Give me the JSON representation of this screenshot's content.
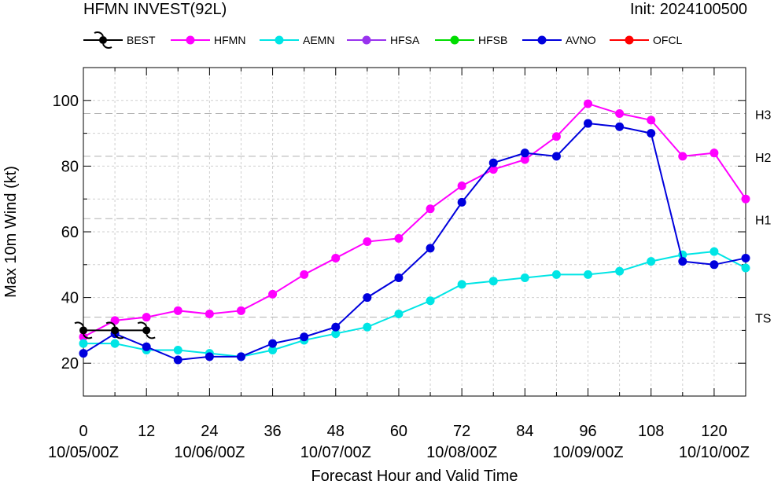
{
  "chart_data": {
    "type": "line",
    "title": "HFMN INVEST(92L)",
    "init_label": "Init: 2024100500",
    "xlabel": "Forecast Hour and Valid Time",
    "ylabel": "Max 10m Wind (kt)",
    "xlim": [
      0,
      126
    ],
    "ylim": [
      10,
      110
    ],
    "x_ticks": [
      0,
      12,
      24,
      36,
      48,
      60,
      72,
      84,
      96,
      108,
      120
    ],
    "x_date_ticks": [
      {
        "x": 0,
        "label": "10/05/00Z"
      },
      {
        "x": 24,
        "label": "10/06/00Z"
      },
      {
        "x": 48,
        "label": "10/07/00Z"
      },
      {
        "x": 72,
        "label": "10/08/00Z"
      },
      {
        "x": 96,
        "label": "10/09/00Z"
      },
      {
        "x": 120,
        "label": "10/10/00Z"
      }
    ],
    "y_ticks": [
      20,
      40,
      60,
      80,
      100
    ],
    "grid": true,
    "legend_position": "top",
    "thresholds": [
      {
        "label": "TS",
        "value": 34
      },
      {
        "label": "H1",
        "value": 64
      },
      {
        "label": "H2",
        "value": 83
      },
      {
        "label": "H3",
        "value": 96
      }
    ],
    "series": [
      {
        "name": "BEST",
        "color": "#000000",
        "marker": "hurricane-symbol",
        "x": [
          0,
          6,
          12
        ],
        "y": [
          30,
          30,
          30
        ]
      },
      {
        "name": "HFMN",
        "color": "#ff00ff",
        "marker": "circle",
        "x": [
          0,
          6,
          12,
          18,
          24,
          30,
          36,
          42,
          48,
          54,
          60,
          66,
          72,
          78,
          84,
          90,
          96,
          102,
          108,
          114,
          120,
          126
        ],
        "y": [
          28,
          33,
          34,
          36,
          35,
          36,
          41,
          47,
          52,
          57,
          58,
          67,
          74,
          79,
          82,
          89,
          99,
          96,
          94,
          83,
          84,
          70
        ]
      },
      {
        "name": "AEMN",
        "color": "#00e5e5",
        "marker": "circle",
        "x": [
          0,
          6,
          12,
          18,
          24,
          30,
          36,
          42,
          48,
          54,
          60,
          66,
          72,
          78,
          84,
          90,
          96,
          102,
          108,
          114,
          120,
          126
        ],
        "y": [
          26,
          26,
          24,
          24,
          23,
          22,
          24,
          27,
          29,
          31,
          35,
          39,
          44,
          45,
          46,
          47,
          47,
          48,
          51,
          53,
          54,
          49
        ]
      },
      {
        "name": "HFSA",
        "color": "#9933ee",
        "marker": "circle",
        "x": [],
        "y": []
      },
      {
        "name": "HFSB",
        "color": "#00dd00",
        "marker": "circle",
        "x": [],
        "y": []
      },
      {
        "name": "AVNO",
        "color": "#0000dd",
        "marker": "circle",
        "x": [
          0,
          6,
          12,
          18,
          24,
          30,
          36,
          42,
          48,
          54,
          60,
          66,
          72,
          78,
          84,
          90,
          96,
          102,
          108,
          114,
          120,
          126
        ],
        "y": [
          23,
          29,
          25,
          21,
          22,
          22,
          26,
          28,
          31,
          40,
          46,
          55,
          69,
          81,
          84,
          83,
          93,
          92,
          90,
          51,
          50,
          52
        ]
      },
      {
        "name": "OFCL",
        "color": "#ff0000",
        "marker": "circle",
        "x": [],
        "y": []
      }
    ]
  }
}
